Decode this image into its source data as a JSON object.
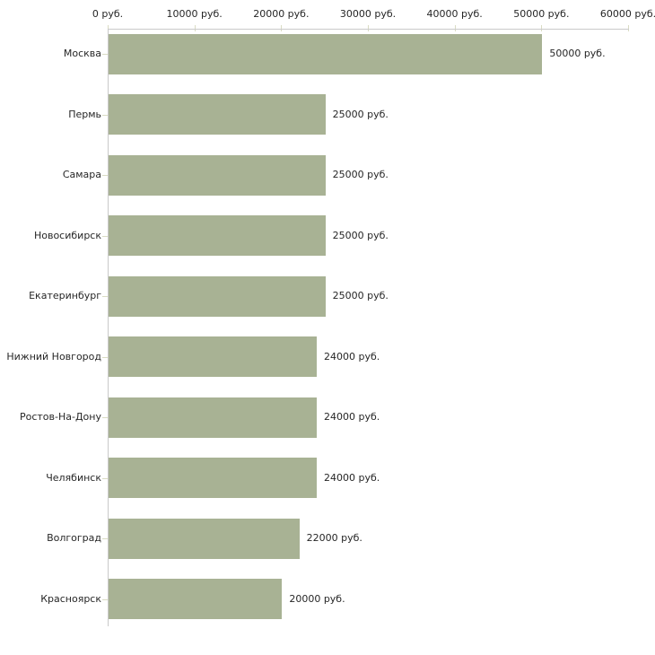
{
  "chart_data": {
    "type": "bar",
    "orientation": "horizontal",
    "title": "",
    "xlabel": "",
    "ylabel": "",
    "unit": "руб.",
    "categories": [
      "Москва",
      "Пермь",
      "Самара",
      "Новосибирск",
      "Екатеринбург",
      "Нижний Новгород",
      "Ростов-На-Дону",
      "Челябинск",
      "Волгоград",
      "Красноярск"
    ],
    "values": [
      50000,
      25000,
      25000,
      25000,
      25000,
      24000,
      24000,
      24000,
      22000,
      20000
    ],
    "value_labels": [
      "50000 руб.",
      "25000 руб.",
      "25000 руб.",
      "25000 руб.",
      "25000 руб.",
      "24000 руб.",
      "24000 руб.",
      "24000 руб.",
      "22000 руб.",
      "20000 руб."
    ],
    "xlim": [
      0,
      60000
    ],
    "x_ticks": [
      0,
      10000,
      20000,
      30000,
      40000,
      50000,
      60000
    ],
    "x_tick_labels": [
      "0 руб.",
      "10000 руб.",
      "20000 руб.",
      "30000 руб.",
      "40000 руб.",
      "50000 руб.",
      "60000 руб."
    ],
    "grid": false,
    "legend": "none",
    "colors": {
      "bar_fill": "#a8b294",
      "axis_line": "#c9c9c9",
      "tick_mark": "#d9dbc3",
      "text": "#262626",
      "background": "#ffffff"
    }
  }
}
